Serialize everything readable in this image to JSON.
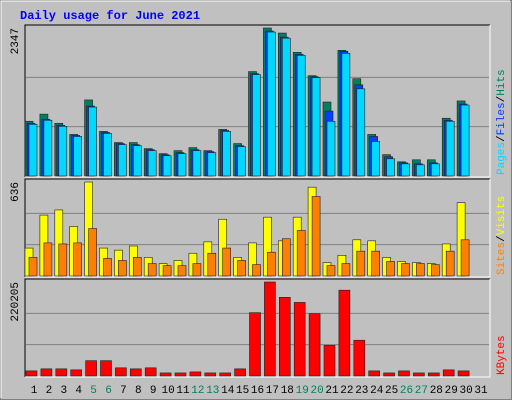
{
  "chart_data": [
    {
      "type": "bar",
      "title": "Daily usage for June 2021",
      "ylim": [
        0,
        2347
      ],
      "yticks": [
        2347
      ],
      "legend_separator": "/",
      "series": [
        {
          "name": "Hits",
          "color": "#008060",
          "values": [
            868,
            981,
            836,
            659,
            1206,
            707,
            530,
            530,
            434,
            354,
            402,
            450,
            402,
            739,
            514,
            1656,
            2347,
            2267,
            1961,
            1591,
            1173,
            1993,
            1543,
            659,
            338,
            225,
            257,
            257,
            916,
            1190,
            null
          ]
        },
        {
          "name": "Files",
          "color": "#0040ff",
          "values": [
            836,
            900,
            804,
            643,
            1109,
            691,
            514,
            498,
            418,
            337,
            370,
            418,
            386,
            723,
            482,
            1624,
            2299,
            2202,
            1929,
            1575,
            1029,
            1977,
            1446,
            627,
            305,
            209,
            193,
            209,
            884,
            1141,
            null
          ]
        },
        {
          "name": "Pages",
          "color": "#00d8ff",
          "values": [
            820,
            884,
            788,
            627,
            1093,
            675,
            498,
            482,
            402,
            321,
            354,
            402,
            370,
            707,
            466,
            1608,
            2283,
            2186,
            1913,
            1559,
            868,
            1945,
            1382,
            547,
            273,
            193,
            177,
            193,
            868,
            1125,
            null
          ]
        }
      ]
    },
    {
      "type": "bar",
      "ylim": [
        0,
        636
      ],
      "yticks": [
        636
      ],
      "legend_separator": "/",
      "series": [
        {
          "name": "Visits",
          "color": "#ffff00",
          "values": [
            189,
            412,
            447,
            335,
            636,
            189,
            175,
            203,
            126,
            84,
            105,
            154,
            231,
            384,
            126,
            224,
            398,
            238,
            398,
            601,
            91,
            140,
            245,
            238,
            126,
            98,
            91,
            84,
            217,
            496,
            null
          ]
        },
        {
          "name": "Sites",
          "color": "#ff8000",
          "values": [
            126,
            224,
            217,
            224,
            321,
            119,
            105,
            126,
            84,
            70,
            70,
            84,
            154,
            189,
            105,
            77,
            161,
            252,
            308,
            538,
            70,
            84,
            168,
            168,
            98,
            84,
            84,
            77,
            168,
            245,
            null
          ]
        }
      ]
    },
    {
      "type": "bar",
      "ylim": [
        0,
        220205
      ],
      "yticks": [
        220205
      ],
      "categories": [
        "1",
        "2",
        "3",
        "4",
        "5",
        "6",
        "7",
        "8",
        "9",
        "10",
        "11",
        "12",
        "13",
        "14",
        "15",
        "16",
        "17",
        "18",
        "19",
        "20",
        "21",
        "22",
        "23",
        "24",
        "25",
        "26",
        "27",
        "28",
        "29",
        "30",
        "31"
      ],
      "category_colors": [
        "#000000",
        "#000000",
        "#000000",
        "#000000",
        "#00805c",
        "#00805c",
        "#000000",
        "#000000",
        "#000000",
        "#000000",
        "#000000",
        "#00805c",
        "#00805c",
        "#000000",
        "#000000",
        "#000000",
        "#000000",
        "#000000",
        "#00805c",
        "#00805c",
        "#000000",
        "#000000",
        "#000000",
        "#000000",
        "#000000",
        "#00805c",
        "#00805c",
        "#000000",
        "#000000",
        "#000000",
        "#000000"
      ],
      "series": [
        {
          "name": "KBytes",
          "color": "#ff0000",
          "values": [
            11968,
            16755,
            16755,
            14361,
            35903,
            35903,
            19148,
            16755,
            19148,
            7181,
            7181,
            9574,
            7181,
            7181,
            16755,
            148399,
            220205,
            184302,
            172334,
            146006,
            71806,
            201057,
            83774,
            11968,
            7181,
            11968,
            7181,
            7181,
            14361,
            11968,
            null
          ]
        }
      ]
    }
  ]
}
